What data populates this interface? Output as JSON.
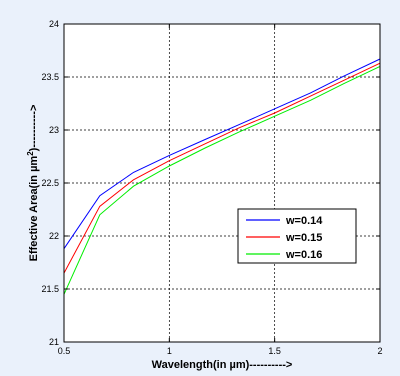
{
  "chart_data": {
    "type": "line",
    "xlabel": "Wavelength(in µm)---------->",
    "ylabel_main": "Effective Area(in µm",
    "ylabel_sup": "2",
    "ylabel_tail": ")---------->",
    "xlim": [
      0.5,
      2
    ],
    "ylim": [
      21,
      24
    ],
    "x_ticks": [
      "0.5",
      "1",
      "1.5",
      "2"
    ],
    "y_ticks": [
      "21",
      "21.5",
      "22",
      "22.5",
      "23",
      "23.5",
      "24"
    ],
    "grid": true,
    "legend_position": "center-right",
    "x": [
      0.5,
      0.67,
      0.83,
      1.0,
      1.17,
      1.33,
      1.5,
      1.67,
      1.83,
      2.0
    ],
    "series": [
      {
        "name": "w=0.14",
        "color": "#0000ff",
        "values": [
          21.88,
          22.38,
          22.6,
          22.76,
          22.91,
          23.05,
          23.2,
          23.35,
          23.51,
          23.67
        ]
      },
      {
        "name": "w=0.15",
        "color": "#ff0000",
        "values": [
          21.65,
          22.28,
          22.53,
          22.71,
          22.87,
          23.02,
          23.16,
          23.32,
          23.47,
          23.63
        ]
      },
      {
        "name": "w=0.16",
        "color": "#00ee00",
        "values": [
          21.45,
          22.2,
          22.47,
          22.66,
          22.83,
          22.98,
          23.13,
          23.28,
          23.44,
          23.6
        ]
      }
    ]
  }
}
